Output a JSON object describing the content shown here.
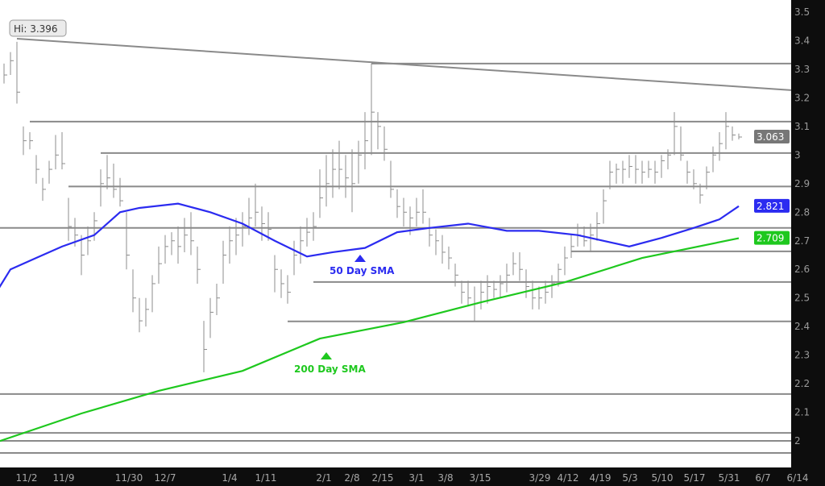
{
  "chart_data": {
    "type": "ohlc-bar",
    "title": "",
    "xlabel": "",
    "ylabel": "",
    "ylim": [
      1.93,
      3.55
    ],
    "grid": false,
    "y_ticks": [
      "3.5",
      "3.4",
      "3.3",
      "3.2",
      "3.1",
      "3",
      "2.9",
      "2.8",
      "2.7",
      "2.6",
      "2.5",
      "2.4",
      "2.3",
      "2.2",
      "2.1",
      "2"
    ],
    "x_ticks": [
      "11/2",
      "11/9",
      "11/30",
      "12/7",
      "1/4",
      "1/11",
      "2/1",
      "2/8",
      "2/15",
      "3/1",
      "3/8",
      "3/15",
      "3/29",
      "4/12",
      "4/19",
      "5/3",
      "5/10",
      "5/17",
      "5/31",
      "6/7",
      "6/14"
    ],
    "bar_fields": [
      "high",
      "low",
      "close"
    ],
    "bars": [
      [
        3.32,
        3.25,
        3.28
      ],
      [
        3.36,
        3.28,
        3.33
      ],
      [
        3.396,
        3.18,
        3.22
      ],
      [
        3.1,
        3.0,
        3.05
      ],
      [
        3.08,
        3.02,
        3.05
      ],
      [
        3.0,
        2.9,
        2.95
      ],
      [
        2.92,
        2.84,
        2.88
      ],
      [
        2.98,
        2.9,
        2.95
      ],
      [
        3.07,
        2.95,
        3.0
      ],
      [
        3.08,
        2.95,
        2.97
      ],
      [
        2.85,
        2.7,
        2.75
      ],
      [
        2.78,
        2.68,
        2.72
      ],
      [
        2.72,
        2.58,
        2.65
      ],
      [
        2.75,
        2.65,
        2.7
      ],
      [
        2.8,
        2.7,
        2.77
      ],
      [
        2.95,
        2.82,
        2.9
      ],
      [
        3.0,
        2.88,
        2.92
      ],
      [
        2.97,
        2.85,
        2.88
      ],
      [
        2.92,
        2.82,
        2.84
      ],
      [
        2.8,
        2.6,
        2.65
      ],
      [
        2.6,
        2.45,
        2.5
      ],
      [
        2.5,
        2.38,
        2.42
      ],
      [
        2.5,
        2.4,
        2.46
      ],
      [
        2.58,
        2.45,
        2.55
      ],
      [
        2.68,
        2.55,
        2.62
      ],
      [
        2.72,
        2.62,
        2.68
      ],
      [
        2.73,
        2.65,
        2.7
      ],
      [
        2.75,
        2.62,
        2.68
      ],
      [
        2.78,
        2.66,
        2.72
      ],
      [
        2.8,
        2.65,
        2.7
      ],
      [
        2.68,
        2.55,
        2.6
      ],
      [
        2.42,
        2.24,
        2.32
      ],
      [
        2.5,
        2.36,
        2.45
      ],
      [
        2.55,
        2.44,
        2.5
      ],
      [
        2.7,
        2.55,
        2.65
      ],
      [
        2.75,
        2.62,
        2.7
      ],
      [
        2.78,
        2.65,
        2.72
      ],
      [
        2.8,
        2.68,
        2.75
      ],
      [
        2.85,
        2.72,
        2.78
      ],
      [
        2.9,
        2.75,
        2.8
      ],
      [
        2.82,
        2.7,
        2.76
      ],
      [
        2.8,
        2.7,
        2.74
      ],
      [
        2.65,
        2.52,
        2.6
      ],
      [
        2.6,
        2.5,
        2.55
      ],
      [
        2.58,
        2.48,
        2.52
      ],
      [
        2.7,
        2.58,
        2.65
      ],
      [
        2.75,
        2.62,
        2.7
      ],
      [
        2.78,
        2.68,
        2.73
      ],
      [
        2.8,
        2.7,
        2.75
      ],
      [
        2.95,
        2.78,
        2.85
      ],
      [
        3.0,
        2.82,
        2.9
      ],
      [
        3.02,
        2.85,
        2.95
      ],
      [
        3.05,
        2.88,
        2.95
      ],
      [
        3.0,
        2.85,
        2.92
      ],
      [
        3.02,
        2.8,
        2.9
      ],
      [
        3.05,
        2.9,
        3.0
      ],
      [
        3.15,
        2.95,
        3.05
      ],
      [
        3.32,
        3.0,
        3.15
      ],
      [
        3.15,
        3.02,
        3.1
      ],
      [
        3.1,
        2.98,
        3.02
      ],
      [
        2.98,
        2.85,
        2.88
      ],
      [
        2.88,
        2.78,
        2.82
      ],
      [
        2.85,
        2.75,
        2.8
      ],
      [
        2.82,
        2.72,
        2.78
      ],
      [
        2.85,
        2.75,
        2.8
      ],
      [
        2.88,
        2.76,
        2.8
      ],
      [
        2.78,
        2.68,
        2.72
      ],
      [
        2.74,
        2.65,
        2.7
      ],
      [
        2.72,
        2.62,
        2.66
      ],
      [
        2.68,
        2.6,
        2.64
      ],
      [
        2.62,
        2.54,
        2.58
      ],
      [
        2.56,
        2.48,
        2.52
      ],
      [
        2.56,
        2.47,
        2.5
      ],
      [
        2.54,
        2.42,
        2.48
      ],
      [
        2.56,
        2.46,
        2.52
      ],
      [
        2.58,
        2.48,
        2.54
      ],
      [
        2.56,
        2.5,
        2.53
      ],
      [
        2.58,
        2.5,
        2.55
      ],
      [
        2.62,
        2.52,
        2.58
      ],
      [
        2.66,
        2.58,
        2.62
      ],
      [
        2.66,
        2.56,
        2.6
      ],
      [
        2.6,
        2.5,
        2.54
      ],
      [
        2.56,
        2.46,
        2.5
      ],
      [
        2.54,
        2.46,
        2.5
      ],
      [
        2.56,
        2.48,
        2.52
      ],
      [
        2.58,
        2.5,
        2.55
      ],
      [
        2.62,
        2.54,
        2.6
      ],
      [
        2.68,
        2.58,
        2.64
      ],
      [
        2.72,
        2.64,
        2.68
      ],
      [
        2.76,
        2.68,
        2.72
      ],
      [
        2.75,
        2.68,
        2.7
      ],
      [
        2.76,
        2.66,
        2.72
      ],
      [
        2.8,
        2.7,
        2.76
      ],
      [
        2.88,
        2.76,
        2.84
      ],
      [
        2.98,
        2.88,
        2.94
      ],
      [
        2.97,
        2.9,
        2.95
      ],
      [
        2.98,
        2.9,
        2.95
      ],
      [
        3.0,
        2.92,
        2.96
      ],
      [
        3.0,
        2.9,
        2.95
      ],
      [
        2.98,
        2.9,
        2.94
      ],
      [
        2.98,
        2.92,
        2.95
      ],
      [
        2.98,
        2.9,
        2.94
      ],
      [
        3.0,
        2.92,
        2.98
      ],
      [
        3.02,
        2.95,
        3.0
      ],
      [
        3.15,
        3.0,
        3.1
      ],
      [
        3.1,
        2.98,
        3.0
      ],
      [
        2.98,
        2.9,
        2.94
      ],
      [
        2.95,
        2.88,
        2.9
      ],
      [
        2.9,
        2.83,
        2.86
      ],
      [
        2.96,
        2.88,
        2.94
      ],
      [
        3.03,
        2.94,
        3.0
      ],
      [
        3.08,
        2.98,
        3.04
      ],
      [
        3.15,
        3.02,
        3.1
      ],
      [
        3.1,
        3.05,
        3.07
      ],
      [
        3.075,
        3.055,
        3.063
      ]
    ],
    "series": [
      {
        "name": "50 Day SMA",
        "color": "#2b2bf0",
        "points": [
          [
            -1,
            2.527
          ],
          [
            1,
            2.6
          ],
          [
            5,
            2.64
          ],
          [
            9,
            2.68
          ],
          [
            14,
            2.72
          ],
          [
            18,
            2.8
          ],
          [
            21,
            2.815
          ],
          [
            27,
            2.83
          ],
          [
            32,
            2.8
          ],
          [
            37,
            2.76
          ],
          [
            42,
            2.7
          ],
          [
            47,
            2.645
          ],
          [
            51,
            2.66
          ],
          [
            56,
            2.675
          ],
          [
            61,
            2.73
          ],
          [
            66,
            2.745
          ],
          [
            72,
            2.76
          ],
          [
            78,
            2.735
          ],
          [
            83,
            2.735
          ],
          [
            89,
            2.72
          ],
          [
            97,
            2.68
          ],
          [
            102,
            2.71
          ],
          [
            107,
            2.745
          ],
          [
            111,
            2.775
          ],
          [
            114,
            2.821
          ]
        ]
      },
      {
        "name": "200 Day SMA",
        "color": "#1ec81e",
        "points": [
          [
            -1,
            1.997
          ],
          [
            12,
            2.096
          ],
          [
            24,
            2.175
          ],
          [
            37,
            2.245
          ],
          [
            49,
            2.358
          ],
          [
            62,
            2.415
          ],
          [
            74,
            2.485
          ],
          [
            87,
            2.555
          ],
          [
            99,
            2.64
          ],
          [
            114,
            2.709
          ]
        ]
      }
    ],
    "horizontal_levels": [
      3.32,
      3.117,
      3.007,
      2.89,
      2.745,
      2.663,
      2.556,
      2.418,
      2.164,
      2.028,
      2.0,
      1.958
    ],
    "level_start_bar": [
      57,
      4,
      15,
      10,
      -1,
      88,
      48,
      44,
      -1,
      -1,
      -1,
      -1
    ],
    "trendline": {
      "from": [
        2,
        3.407
      ],
      "to_right_edge": 3.227
    },
    "annotations": {
      "high_label": "Hi: 3.396",
      "sma50_label": "50 Day SMA",
      "sma200_label": "200 Day SMA"
    },
    "last_values": {
      "price": "3.063",
      "sma50": "2.821",
      "sma200": "2.709"
    },
    "colors": {
      "bars": "#8c8c8c",
      "levels": "#8a8a8a",
      "sma50": "#2b2bf0",
      "sma200": "#1ec81e",
      "price_badge": "#777777",
      "axis_bg": "#0d0d0d"
    }
  }
}
